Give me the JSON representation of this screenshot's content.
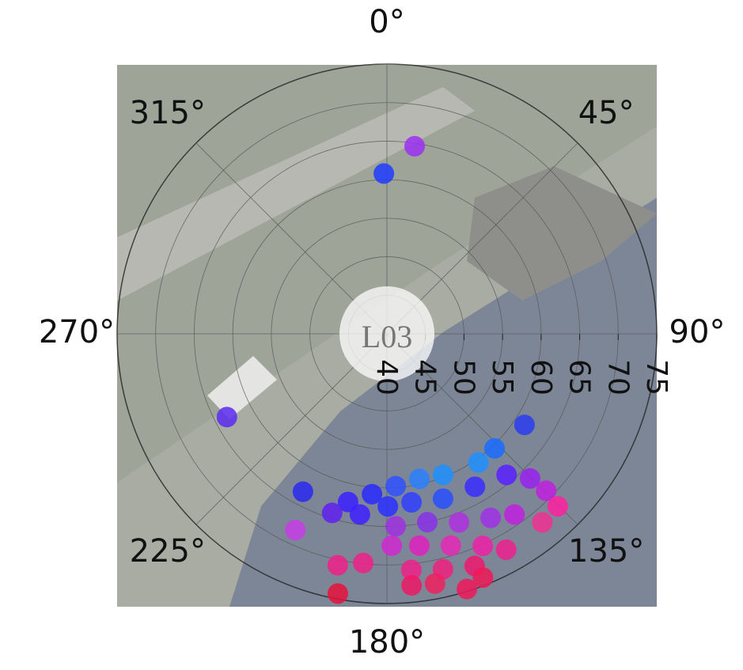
{
  "chart_data": {
    "type": "scatter_polar",
    "center_label": "L03",
    "rlim": [
      40,
      75
    ],
    "rticks": [
      40,
      45,
      50,
      55,
      60,
      65,
      70,
      75
    ],
    "angular_ticks": [
      {
        "value": 0,
        "label": "0°"
      },
      {
        "value": 45,
        "label": "45°"
      },
      {
        "value": 90,
        "label": "90°"
      },
      {
        "value": 135,
        "label": "135°"
      },
      {
        "value": 180,
        "label": "180°"
      },
      {
        "value": 225,
        "label": "225°"
      },
      {
        "value": 270,
        "label": "270°"
      },
      {
        "value": 315,
        "label": "315°"
      }
    ],
    "theta": [
      8.4,
      358.9,
      242.5,
      123.5,
      208.0,
      205.0,
      192.0,
      185.9,
      190.7,
      136.8,
      144.6,
      158.3,
      167.4,
      176.7,
      185.3,
      193.0,
      197.0,
      188.5,
      179.7,
      171.7,
      161.2,
      150.1,
      139.7,
      135.3,
      134.6,
      135.3,
      140.5,
      144.8,
      150.6,
      159.1,
      167.9,
      177.4,
      178.7,
      171.3,
      163.2,
      155.7,
      151.1,
      174.1,
      166.6,
      159.3,
      174.4,
      169.1,
      162.6,
      158.5
    ],
    "r": [
      64.6,
      60.8,
      63.4,
      61.4,
      63.2,
      68.1,
      70.7,
      69.9,
      74.3,
      60.4,
      60.5,
      59.7,
      59.3,
      59.8,
      60.9,
      62.4,
      64.3,
      63.7,
      62.4,
      62.1,
      62.6,
      62.9,
      64.0,
      66.4,
      69.0,
      71.5,
      71.7,
      68.7,
      67.4,
      66.2,
      65.0,
      65.0,
      67.5,
      67.8,
      68.7,
      70.2,
      72.0,
      70.8,
      71.4,
      72.2,
      72.8,
      73.0,
      74.7,
      74.0
    ],
    "colors": [
      "#9b30f0",
      "#1f3cff",
      "#5a2cf0",
      "#2a3cf0",
      "#2a28f0",
      "#c83ce8",
      "#f0208a",
      "#f0208a",
      "#e8103c",
      "#1a6cff",
      "#1e90ff",
      "#1e90ff",
      "#2a7fff",
      "#3050ff",
      "#2a2aff",
      "#3b1fff",
      "#6020f0",
      "#4020ff",
      "#2a30ff",
      "#3040ff",
      "#2850ff",
      "#3a2cff",
      "#5a20ff",
      "#9a20f0",
      "#c020e0",
      "#ff20a0",
      "#f03090",
      "#c020e0",
      "#a030e8",
      "#b030e0",
      "#8a30e8",
      "#a030e0",
      "#d028d0",
      "#e020c0",
      "#e828b8",
      "#f020a8",
      "#f02090",
      "#f0208a",
      "#f02080",
      "#f01870",
      "#f01866",
      "#f0205f",
      "#f0185a",
      "#f01858"
    ]
  }
}
